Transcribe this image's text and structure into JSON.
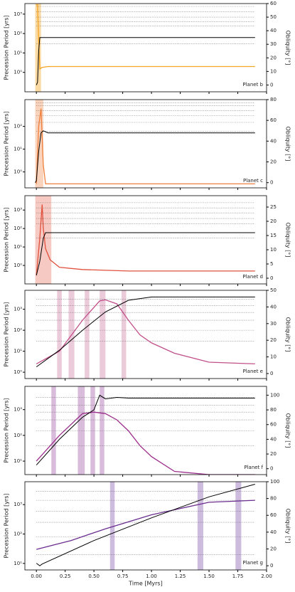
{
  "chart_data": [
    {
      "type": "line",
      "label": "Planet b",
      "ylabel": "Precession Period [yrs]",
      "y2label": "Obliquity [°]",
      "ylog": true,
      "xlim": [
        -0.1,
        2.0
      ],
      "ylim": [
        0.1,
        3500
      ],
      "yticks": [
        {
          "value": 1,
          "label": "10⁰"
        },
        {
          "value": 10,
          "label": "10¹"
        },
        {
          "value": 100,
          "label": "10²"
        },
        {
          "value": 1000,
          "label": "10³"
        }
      ],
      "y2lim": [
        -5,
        60
      ],
      "y2ticks": [
        0,
        10,
        20,
        30,
        40,
        50,
        60
      ],
      "shade_color": "#f9c97a",
      "shaded_spans": [
        [
          -0.01,
          0.04
        ]
      ],
      "reference_lines": [
        2500,
        1300,
        700,
        400,
        250,
        30
      ],
      "series": [
        {
          "name": "Precession",
          "color": "#f5a623",
          "x": [
            0,
            0.01,
            0.02,
            0.03,
            0.05,
            0.1,
            0.2,
            0.5,
            1.0,
            1.5,
            1.9
          ],
          "values": [
            3000,
            3000,
            50,
            1.5,
            1.8,
            2,
            2,
            2,
            2,
            2,
            2
          ]
        },
        {
          "name": "Obliquity",
          "color": "#000000",
          "axis": "y2",
          "x": [
            0,
            0.01,
            0.02,
            0.03,
            0.05,
            0.1,
            0.5,
            1.0,
            1.5,
            1.9
          ],
          "values": [
            0,
            2,
            25,
            35,
            35,
            35,
            35,
            35,
            35,
            35
          ]
        }
      ]
    },
    {
      "type": "line",
      "label": "Planet c",
      "ylabel": "Precession Period [yrs]",
      "y2label": "Obliquity [°]",
      "ylog": true,
      "xlim": [
        -0.1,
        2.0
      ],
      "ylim": [
        0.2,
        1500
      ],
      "yticks": [
        {
          "value": 1,
          "label": "10⁰"
        },
        {
          "value": 10,
          "label": "10¹"
        },
        {
          "value": 100,
          "label": "10²"
        }
      ],
      "y2lim": [
        -5,
        80
      ],
      "y2ticks": [
        0,
        20,
        40,
        60,
        80
      ],
      "shade_color": "#f7c1a0",
      "shaded_spans": [
        [
          -0.01,
          0.06
        ]
      ],
      "reference_lines": [
        1100,
        800,
        500,
        300,
        150,
        60
      ],
      "series": [
        {
          "name": "Precession",
          "color": "#f07f3c",
          "x": [
            0,
            0.02,
            0.04,
            0.06,
            0.08,
            0.1,
            0.5,
            1.9
          ],
          "values": [
            0.3,
            100,
            600,
            2,
            0.3,
            0.3,
            0.3,
            0.3
          ]
        },
        {
          "name": "Obliquity",
          "color": "#000000",
          "axis": "y2",
          "x": [
            -0.01,
            0,
            0.02,
            0.04,
            0.06,
            0.1,
            0.5,
            1.9
          ],
          "values": [
            0,
            2,
            30,
            48,
            50,
            48,
            48,
            48
          ]
        }
      ]
    },
    {
      "type": "line",
      "label": "Planet d",
      "ylabel": "Precession Period [yrs]",
      "y2label": "Obliquity [°]",
      "ylog": true,
      "xlim": [
        -0.1,
        2.0
      ],
      "ylim": [
        0.1,
        6000
      ],
      "yticks": [
        {
          "value": 1,
          "label": "10⁰"
        },
        {
          "value": 10,
          "label": "10¹"
        },
        {
          "value": 100,
          "label": "10²"
        },
        {
          "value": 1000,
          "label": "10³"
        }
      ],
      "y2lim": [
        -2,
        29
      ],
      "y2ticks": [
        0,
        5,
        10,
        15,
        20,
        25
      ],
      "shade_color": "#f2b2a8",
      "shaded_spans": [
        [
          -0.01,
          0.13
        ]
      ],
      "reference_lines": [
        2500,
        1300,
        700,
        350,
        180,
        30
      ],
      "series": [
        {
          "name": "Precession",
          "color": "#e0503c",
          "x": [
            0,
            0.03,
            0.05,
            0.06,
            0.08,
            0.12,
            0.2,
            0.4,
            0.8,
            1.9
          ],
          "values": [
            0.3,
            30,
            2000,
            100,
            8,
            2,
            0.8,
            0.6,
            0.5,
            0.5
          ]
        },
        {
          "name": "Obliquity",
          "color": "#000000",
          "axis": "y2",
          "x": [
            0,
            0.03,
            0.06,
            0.08,
            0.1,
            0.5,
            1.9
          ],
          "values": [
            1,
            6,
            14,
            16,
            16,
            16,
            16
          ]
        }
      ]
    },
    {
      "type": "line",
      "label": "Planet e",
      "ylabel": "Precession Period [yrs]",
      "y2label": "Obliquity [°]",
      "ylog": true,
      "xlim": [
        -0.1,
        2.0
      ],
      "ylim": [
        0.5,
        8000
      ],
      "yticks": [
        {
          "value": 1,
          "label": "10⁰"
        },
        {
          "value": 10,
          "label": "10¹"
        },
        {
          "value": 100,
          "label": "10²"
        },
        {
          "value": 1000,
          "label": "10³"
        }
      ],
      "y2lim": [
        -3,
        50
      ],
      "y2ticks": [
        0,
        10,
        20,
        30,
        40,
        50
      ],
      "shade_color": "#e3b3c9",
      "shaded_spans": [
        [
          0.18,
          0.22
        ],
        [
          0.28,
          0.33
        ],
        [
          0.42,
          0.46
        ],
        [
          0.55,
          0.6
        ],
        [
          0.74,
          0.78
        ]
      ],
      "reference_lines": [
        3000,
        1500,
        700,
        300,
        100,
        30
      ],
      "series": [
        {
          "name": "Precession",
          "color": "#c2508a",
          "x": [
            0,
            0.2,
            0.4,
            0.55,
            0.6,
            0.7,
            0.8,
            0.9,
            1.0,
            1.2,
            1.5,
            1.9
          ],
          "values": [
            2.5,
            10,
            300,
            2500,
            2800,
            1800,
            300,
            60,
            25,
            8,
            3,
            2.5
          ]
        },
        {
          "name": "Obliquity",
          "color": "#000000",
          "axis": "y2",
          "x": [
            0,
            0.2,
            0.4,
            0.6,
            0.8,
            1.0,
            1.5,
            1.9
          ],
          "values": [
            4,
            14,
            26,
            37,
            44,
            46,
            46,
            46
          ]
        }
      ]
    },
    {
      "type": "line",
      "label": "Planet f",
      "ylabel": "Precession Period [yrs]",
      "y2label": "Obliquity [°]",
      "ylog": true,
      "xlim": [
        -0.1,
        2.0
      ],
      "ylim": [
        3,
        8000
      ],
      "yticks": [
        {
          "value": 10,
          "label": "10¹"
        },
        {
          "value": 100,
          "label": "10²"
        },
        {
          "value": 1000,
          "label": "10³"
        }
      ],
      "y2lim": [
        -8,
        112
      ],
      "y2ticks": [
        0,
        20,
        40,
        60,
        80,
        100
      ],
      "shade_color": "#c9a0cc",
      "shaded_spans": [
        [
          0.13,
          0.17
        ],
        [
          0.36,
          0.42
        ],
        [
          0.47,
          0.51
        ],
        [
          0.55,
          0.59
        ]
      ],
      "reference_lines": [
        3000,
        1500,
        800,
        400,
        150,
        40
      ],
      "series": [
        {
          "name": "Precession",
          "color": "#9c2f8c",
          "x": [
            0,
            0.2,
            0.4,
            0.5,
            0.6,
            0.7,
            0.8,
            0.9,
            1.0,
            1.2,
            1.5,
            1.9
          ],
          "values": [
            10,
            100,
            700,
            800,
            700,
            400,
            150,
            40,
            15,
            4,
            3,
            3
          ]
        },
        {
          "name": "Obliquity",
          "color": "#000000",
          "axis": "y2",
          "x": [
            0,
            0.2,
            0.4,
            0.5,
            0.55,
            0.6,
            0.7,
            0.8,
            1.0,
            1.5,
            1.9
          ],
          "values": [
            5,
            40,
            70,
            80,
            100,
            95,
            97,
            96,
            96,
            96,
            96
          ]
        }
      ]
    },
    {
      "type": "line",
      "label": "Planet g",
      "ylabel": "Precession Period [yrs]",
      "y2label": "Obliquity [°]",
      "xlabel": "Time [Myrs]",
      "ylog": true,
      "xlim": [
        -0.1,
        2.0
      ],
      "xticks": [
        "0.00",
        "0.25",
        "0.50",
        "0.75",
        "1.00",
        "1.25",
        "1.50",
        "1.75",
        "2.00"
      ],
      "ylim": [
        6,
        6000
      ],
      "yticks": [
        {
          "value": 10,
          "label": "10¹"
        },
        {
          "value": 100,
          "label": "10²"
        },
        {
          "value": 1000,
          "label": "10³"
        }
      ],
      "y2lim": [
        -5,
        100
      ],
      "y2ticks": [
        0,
        20,
        40,
        60,
        80,
        100
      ],
      "shade_color": "#b89fcf",
      "shaded_spans": [
        [
          0.64,
          0.68
        ],
        [
          1.4,
          1.45
        ],
        [
          1.73,
          1.78
        ]
      ],
      "reference_lines": [
        2800,
        1400,
        600,
        250,
        80,
        20
      ],
      "series": [
        {
          "name": "Precession",
          "color": "#6a2d8f",
          "x": [
            0,
            0.3,
            0.6,
            1.0,
            1.5,
            1.9
          ],
          "values": [
            30,
            60,
            150,
            450,
            1200,
            1400
          ]
        },
        {
          "name": "Obliquity",
          "color": "#000000",
          "axis": "y2",
          "x": [
            0,
            0.03,
            0.05,
            0.5,
            1.0,
            1.5,
            1.9
          ],
          "values": [
            3,
            0,
            2,
            30,
            57,
            82,
            97
          ]
        }
      ]
    }
  ]
}
